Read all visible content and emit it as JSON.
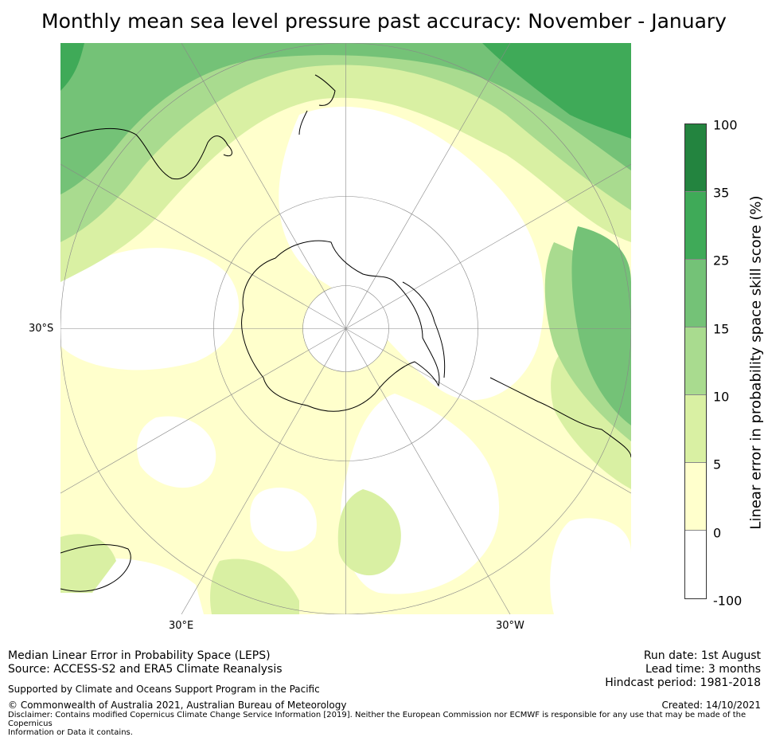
{
  "title": "Monthly mean sea level pressure past accuracy: November - January",
  "map": {
    "projection": "south polar stereographic",
    "lat_labels": [
      "30°S"
    ],
    "lon_labels": [
      "30°E",
      "30°W"
    ]
  },
  "legend": {
    "title": "Linear error in probability space skill score (%)",
    "ticks": [
      "100",
      "35",
      "25",
      "15",
      "10",
      "5",
      "0",
      "-100"
    ],
    "colors": [
      "#23843f",
      "#3faa58",
      "#74c277",
      "#a9db8f",
      "#d9f0a3",
      "#ffffcc",
      "#ffffff"
    ]
  },
  "footer": {
    "line1": "Median Linear Error in Probability Space (LEPS)",
    "line2": "Source: ACCESS-S2 and ERA5 Climate Reanalysis",
    "supported": "Supported by Climate and Oceans Support Program in the Pacific",
    "copyright": "© Commonwealth of Australia 2021, Australian Bureau of Meteorology",
    "disclaimer_1": "Disclaimer: Contains modified Copernicus Climate Change Service Information [2019]. Neither the European Commission nor ECMWF is responsible for any use that may be made of the Copernicus",
    "disclaimer_2": "Information or Data it contains.",
    "run_date": "Run date: 1st August",
    "lead_time": "Lead time: 3 months",
    "hindcast": "Hindcast period: 1981-2018",
    "created": "Created: 14/10/2021"
  }
}
